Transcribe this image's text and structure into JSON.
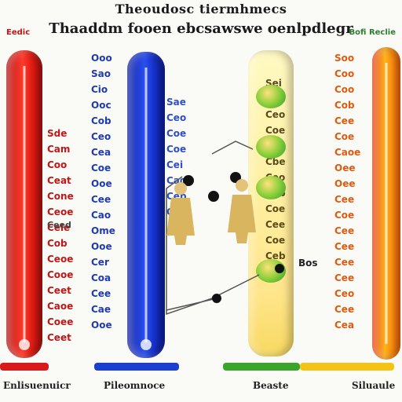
{
  "title": {
    "line1": "Theoudosc tiermhmecs",
    "line2": "Thaaddm fooen ebcsawswe oenlpdlegr"
  },
  "corner_labels": {
    "left": "Eedic",
    "right": "Bofi Reclie"
  },
  "columns": {
    "blue": [
      "Ooo",
      "Sao",
      "Cio",
      "Ooc",
      "Cob",
      "Ceo",
      "Cea",
      "Coe",
      "Ooe",
      "Cee",
      "Cao",
      "Ome",
      "Ooe",
      "Cer",
      "Coa",
      "Cee",
      "Cae",
      "Ooe"
    ],
    "red": [
      "Sde",
      "Cam",
      "Coo",
      "Ceat",
      "Cone",
      "Ceoe",
      "Cele",
      "Cob",
      "Ceoe",
      "Cooe",
      "Ceet",
      "Caoe",
      "Coee",
      "Ceet"
    ],
    "red2": [
      "Sae",
      "Ceo",
      "Coe",
      "Coe",
      "Cei",
      "Caoe",
      "Ceb",
      "Ooe"
    ],
    "mid": [
      "Sei",
      "Cbe",
      "Ceo",
      "Coe",
      "Sbe",
      "Cbe",
      "Ceo",
      "Ceb",
      "Coe",
      "Cee",
      "Coe",
      "Ceb",
      "Cee"
    ],
    "orange": [
      "Soo",
      "Coo",
      "Coo",
      "Cob",
      "Cee",
      "Coe",
      "Caoe",
      "Oee",
      "Oee",
      "Cee",
      "Coe",
      "Cee",
      "Cee",
      "Cee",
      "Cee",
      "Ceo",
      "Cee",
      "Cea"
    ]
  },
  "legends": {
    "left": "Ceed",
    "right": "Bos"
  },
  "footer": [
    "Enlisuenuicr",
    "Pileomnoce",
    "Beaste",
    "Siluaule"
  ],
  "colors": {
    "red": "#d81a1a",
    "blue": "#1b3fcf",
    "yellow": "#f3c317",
    "orange": "#ff9010",
    "green": "#3aa52a"
  }
}
